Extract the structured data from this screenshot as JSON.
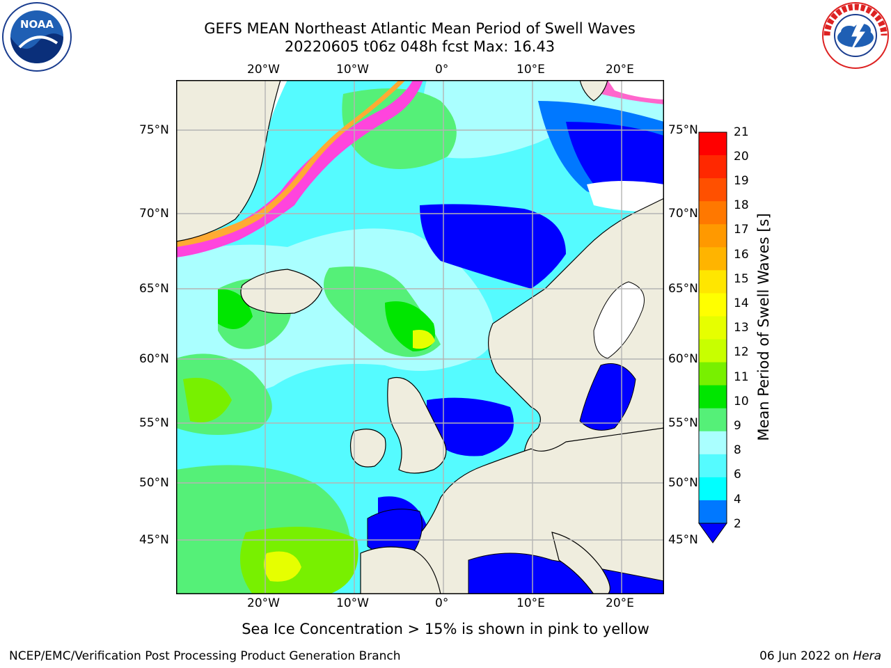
{
  "header": {
    "title_line1": "GEFS MEAN Northeast Atlantic Mean Period of Swell Waves",
    "title_line2": "20220605 t06z 048h fcst   Max: 16.43"
  },
  "logos": {
    "left": {
      "icon": "noaa-logo",
      "text": "NOAA",
      "ring_text": "NATIONAL OCEANIC AND ATMOSPHERIC ADMINISTRATION · U.S. DEPARTMENT OF COMMERCE"
    },
    "right": {
      "icon": "nws-logo",
      "ring_text": "NATIONAL WEATHER SERVICE"
    }
  },
  "map": {
    "lon_ticks_top": [
      "20°W",
      "10°W",
      "0°",
      "10°E",
      "20°E"
    ],
    "lon_ticks_bottom": [
      "20°W",
      "10°W",
      "0°",
      "10°E",
      "20°E"
    ],
    "lat_ticks_left": [
      "75°N",
      "70°N",
      "65°N",
      "60°N",
      "55°N",
      "50°N",
      "45°N"
    ],
    "lat_ticks_right": [
      "75°N",
      "70°N",
      "65°N",
      "60°N",
      "55°N",
      "50°N",
      "45°N"
    ],
    "land_color": "#efedde",
    "ocean_base_color": "#55fbff",
    "coastline_color": "#000000",
    "grid_color": "#b4b4b4"
  },
  "colorbar": {
    "label": "Mean Period of Swell Waves [s]",
    "ticks": [
      "21",
      "20",
      "19",
      "18",
      "17",
      "16",
      "15",
      "14",
      "13",
      "12",
      "11",
      "10",
      "9",
      "8",
      "6",
      "4",
      "2"
    ],
    "colors_top_to_bottom": [
      "#ff0000",
      "#ff2800",
      "#ff5000",
      "#ff7800",
      "#ff9900",
      "#ffb400",
      "#ffe600",
      "#ffff00",
      "#e6ff00",
      "#c8ff00",
      "#78f000",
      "#00e600",
      "#55f078",
      "#aaffff",
      "#55fbff",
      "#00ffff",
      "#0078ff"
    ],
    "extend_color": "#0000ff"
  },
  "footer": {
    "ice_note": "Sea Ice Concentration > 15% is shown in pink to yellow",
    "credit": "NCEP/EMC/Verification Post Processing Product Generation Branch",
    "date_prefix": "06 Jun 2022 on ",
    "machine": "Hera"
  }
}
